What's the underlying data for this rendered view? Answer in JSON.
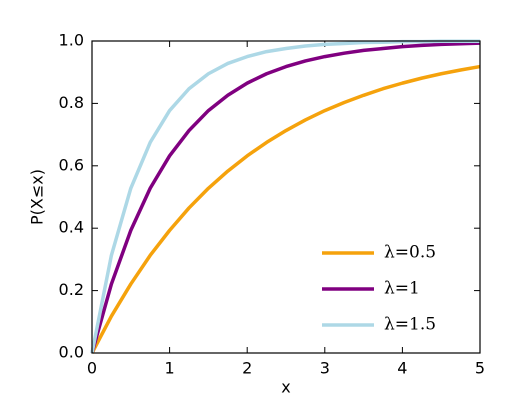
{
  "chart_data": {
    "type": "line",
    "xlabel": "x",
    "ylabel": "P(X≤x)",
    "x": [
      0,
      0.25,
      0.5,
      0.75,
      1,
      1.25,
      1.5,
      1.75,
      2,
      2.25,
      2.5,
      2.75,
      3,
      3.25,
      3.5,
      3.75,
      4,
      4.25,
      4.5,
      4.75,
      5
    ],
    "series": [
      {
        "name": "λ=0.5",
        "color": "#f5a20c",
        "values": [
          0,
          0.118,
          0.221,
          0.313,
          0.393,
          0.465,
          0.528,
          0.583,
          0.632,
          0.675,
          0.713,
          0.747,
          0.777,
          0.803,
          0.826,
          0.847,
          0.865,
          0.881,
          0.895,
          0.907,
          0.918
        ]
      },
      {
        "name": "λ=1",
        "color": "#800080",
        "values": [
          0,
          0.221,
          0.393,
          0.528,
          0.632,
          0.713,
          0.777,
          0.826,
          0.865,
          0.895,
          0.918,
          0.936,
          0.95,
          0.961,
          0.97,
          0.976,
          0.982,
          0.986,
          0.989,
          0.991,
          0.993
        ]
      },
      {
        "name": "λ=1.5",
        "color": "#add8e6",
        "values": [
          0,
          0.313,
          0.528,
          0.675,
          0.777,
          0.847,
          0.895,
          0.928,
          0.95,
          0.966,
          0.976,
          0.984,
          0.989,
          0.992,
          0.995,
          0.996,
          0.998,
          0.998,
          0.999,
          0.999,
          0.999
        ]
      }
    ],
    "xlim": [
      0,
      5
    ],
    "xticks": [
      0,
      1,
      2,
      3,
      4,
      5
    ],
    "ylim": [
      0,
      1
    ],
    "yticks": [
      {
        "value": 0,
        "label": "0.0"
      },
      0.2,
      0.4,
      0.6,
      0.8,
      {
        "value": 1,
        "label": "1.0"
      }
    ],
    "legend": "lower right"
  }
}
